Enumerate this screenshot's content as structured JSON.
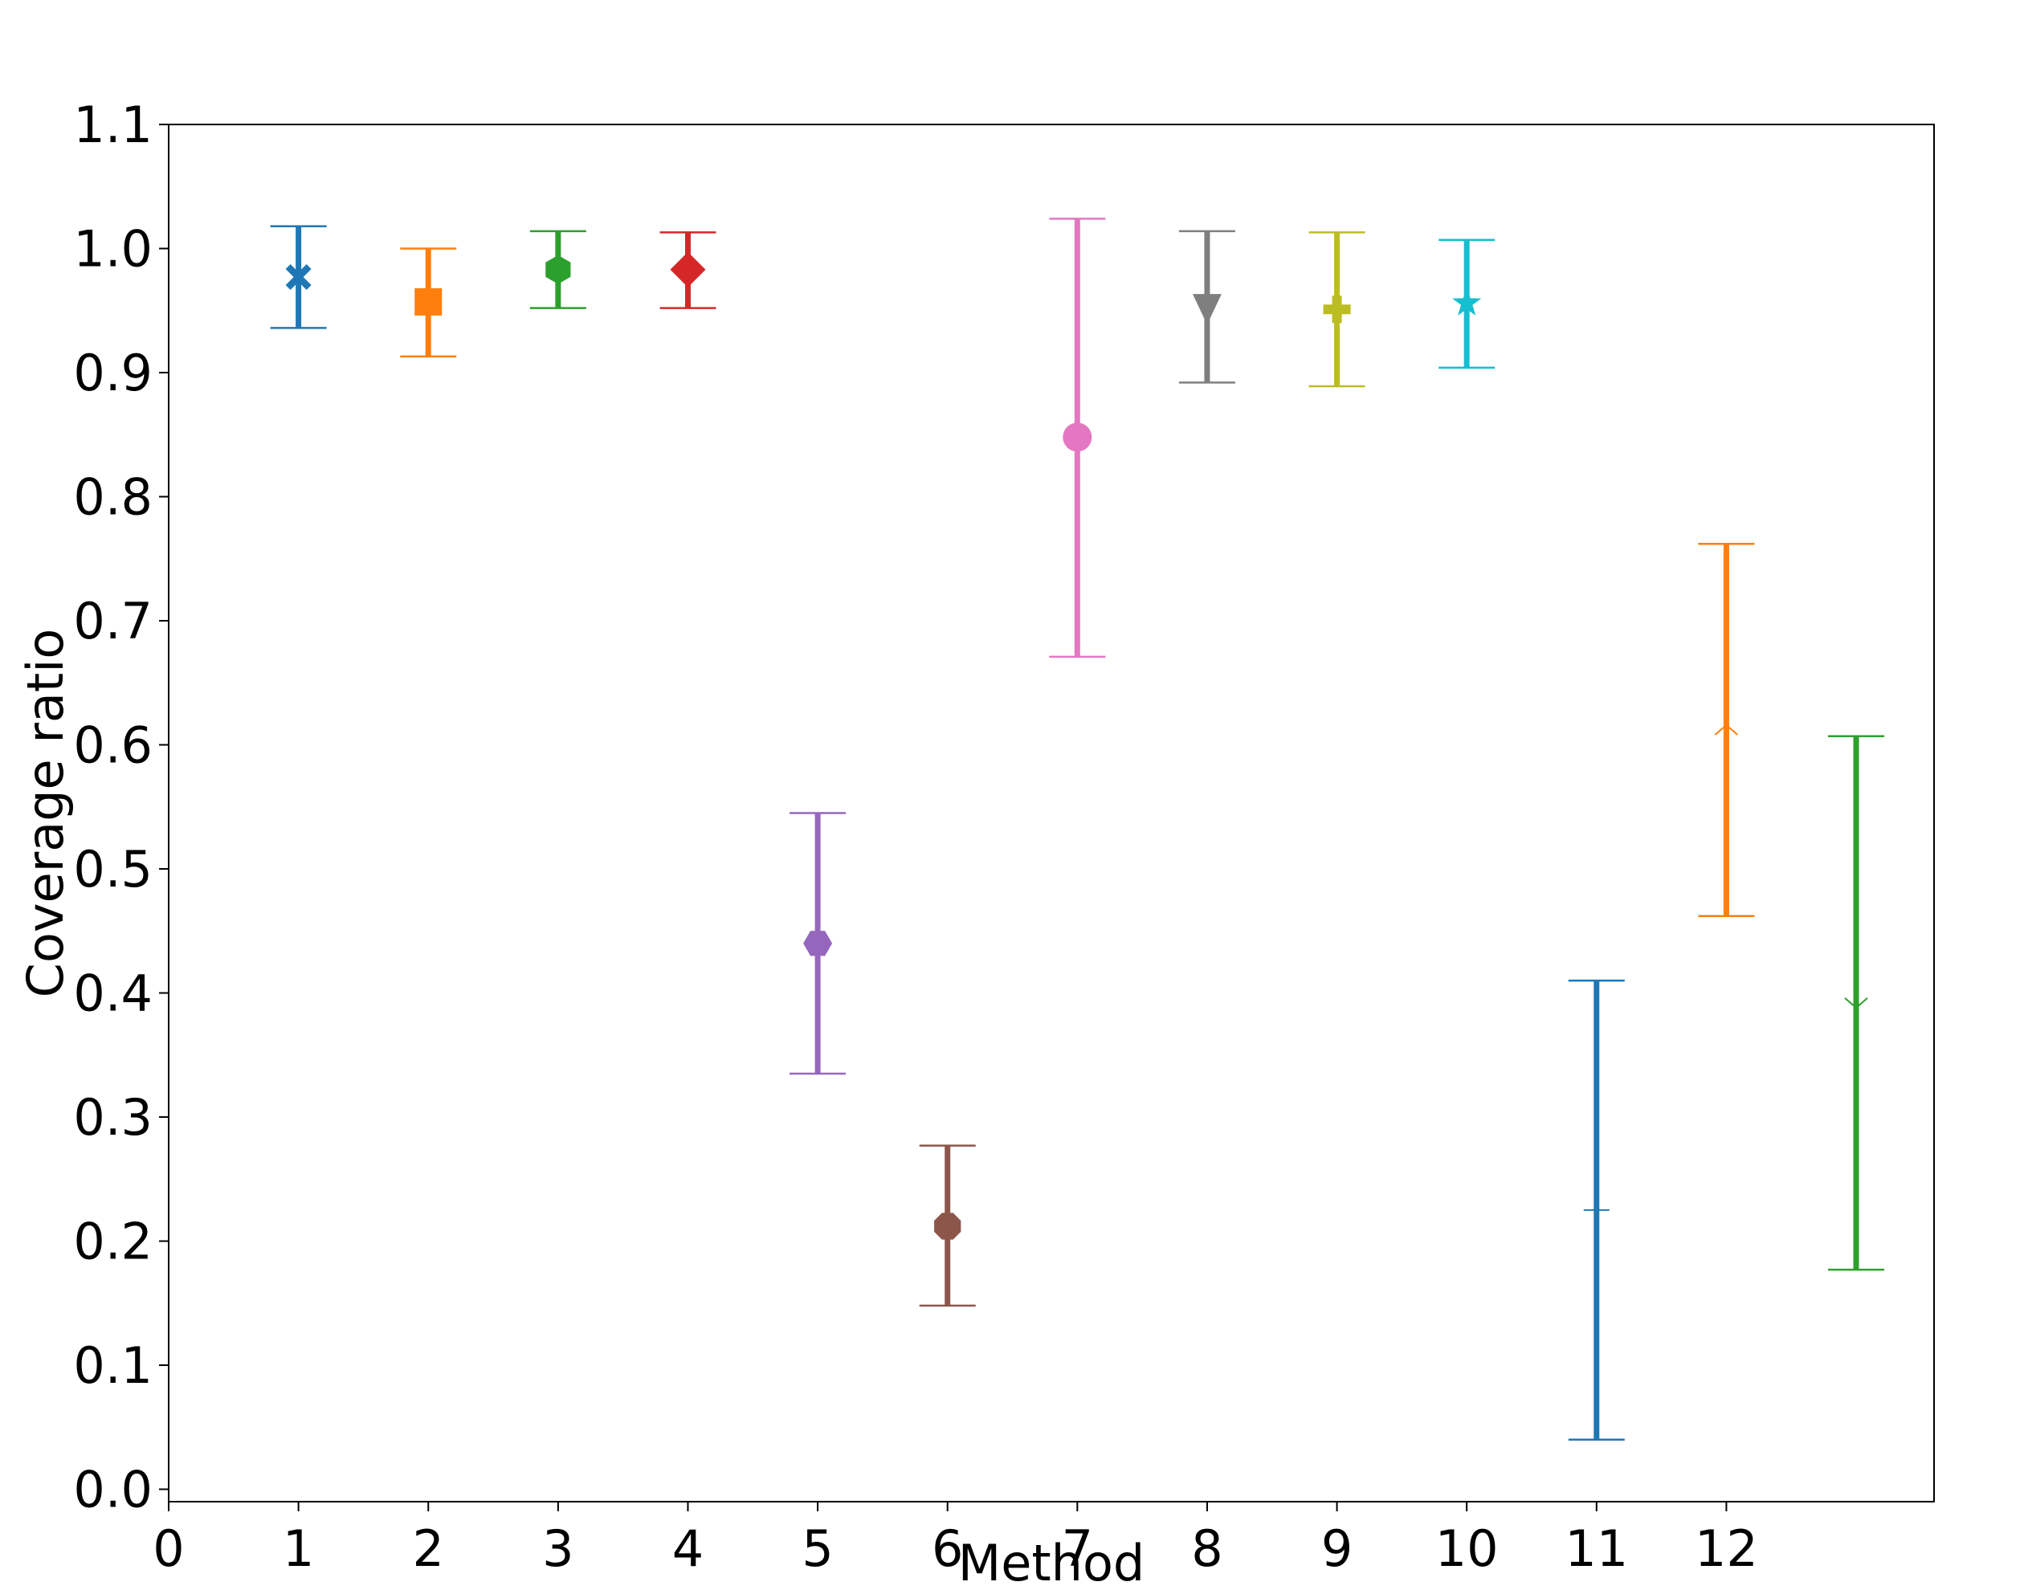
{
  "chart_data": {
    "type": "errorbar",
    "title": "",
    "xlabel": "Method",
    "ylabel": "Coverage ratio",
    "xlim": [
      0,
      13.6
    ],
    "ylim": [
      -0.01,
      1.1
    ],
    "grid": false,
    "legend": "none",
    "x_ticks": [
      "0",
      "1",
      "2",
      "3",
      "4",
      "5",
      "6",
      "7",
      "8",
      "9",
      "10",
      "11",
      "12"
    ],
    "y_ticks": [
      "0.0",
      "0.1",
      "0.2",
      "0.3",
      "0.4",
      "0.5",
      "0.6",
      "0.7",
      "0.8",
      "0.9",
      "1.0",
      "1.1"
    ],
    "points": [
      {
        "x": 1,
        "mean": 0.977,
        "lower": 0.936,
        "upper": 1.018,
        "color": "#1f77b4",
        "marker": "x-filled"
      },
      {
        "x": 2,
        "mean": 0.957,
        "lower": 0.913,
        "upper": 1.0,
        "color": "#ff7f0e",
        "marker": "square"
      },
      {
        "x": 3,
        "mean": 0.983,
        "lower": 0.952,
        "upper": 1.014,
        "color": "#2ca02c",
        "marker": "hexagon"
      },
      {
        "x": 4,
        "mean": 0.983,
        "lower": 0.952,
        "upper": 1.013,
        "color": "#d62728",
        "marker": "diamond"
      },
      {
        "x": 5,
        "mean": 0.44,
        "lower": 0.335,
        "upper": 0.545,
        "color": "#9467bd",
        "marker": "hexagon-flat"
      },
      {
        "x": 6,
        "mean": 0.212,
        "lower": 0.148,
        "upper": 0.277,
        "color": "#8c564b",
        "marker": "octagon"
      },
      {
        "x": 7,
        "mean": 0.848,
        "lower": 0.671,
        "upper": 1.024,
        "color": "#e377c2",
        "marker": "circle"
      },
      {
        "x": 8,
        "mean": 0.953,
        "lower": 0.892,
        "upper": 1.014,
        "color": "#7f7f7f",
        "marker": "triangle-down"
      },
      {
        "x": 9,
        "mean": 0.951,
        "lower": 0.889,
        "upper": 1.013,
        "color": "#bcbd22",
        "marker": "plus-filled"
      },
      {
        "x": 10,
        "mean": 0.956,
        "lower": 0.904,
        "upper": 1.007,
        "color": "#17becf",
        "marker": "star"
      },
      {
        "x": 11,
        "mean": 0.225,
        "lower": 0.04,
        "upper": 0.41,
        "color": "#1f77b4",
        "marker": "hline"
      },
      {
        "x": 12,
        "mean": 0.612,
        "lower": 0.462,
        "upper": 0.762,
        "color": "#ff7f0e",
        "marker": "caret-up"
      },
      {
        "x": 13,
        "mean": 0.392,
        "lower": 0.177,
        "upper": 0.607,
        "color": "#2ca02c",
        "marker": "caret-down"
      }
    ]
  }
}
